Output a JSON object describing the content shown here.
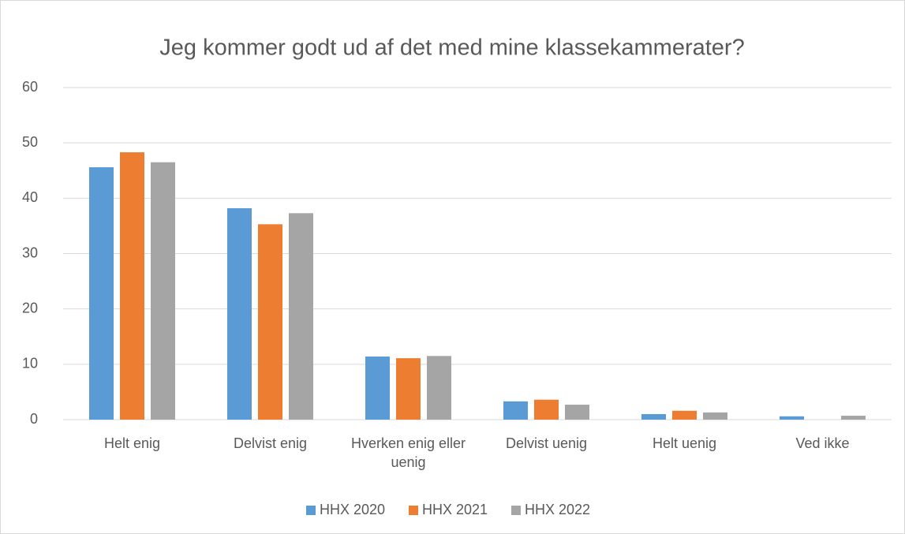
{
  "chart_data": {
    "type": "bar",
    "title": "Jeg kommer godt ud af det med mine klassekammerater?",
    "categories": [
      "Helt enig",
      "Delvist enig",
      "Hverken enig eller uenig",
      "Delvist uenig",
      "Helt uenig",
      "Ved ikke"
    ],
    "series": [
      {
        "name": "HHX 2020",
        "color": "#5b9bd5",
        "values": [
          45.6,
          38.2,
          11.4,
          3.3,
          1.0,
          0.6
        ]
      },
      {
        "name": "HHX 2021",
        "color": "#ed7d31",
        "values": [
          48.3,
          35.3,
          11.1,
          3.6,
          1.6,
          0
        ]
      },
      {
        "name": "HHX 2022",
        "color": "#a5a5a5",
        "values": [
          46.5,
          37.3,
          11.5,
          2.7,
          1.3,
          0.7
        ]
      }
    ],
    "ylim": [
      0,
      60
    ],
    "yticks": [
      0,
      10,
      20,
      30,
      40,
      50,
      60
    ],
    "grid": true,
    "legend": "bottom"
  }
}
